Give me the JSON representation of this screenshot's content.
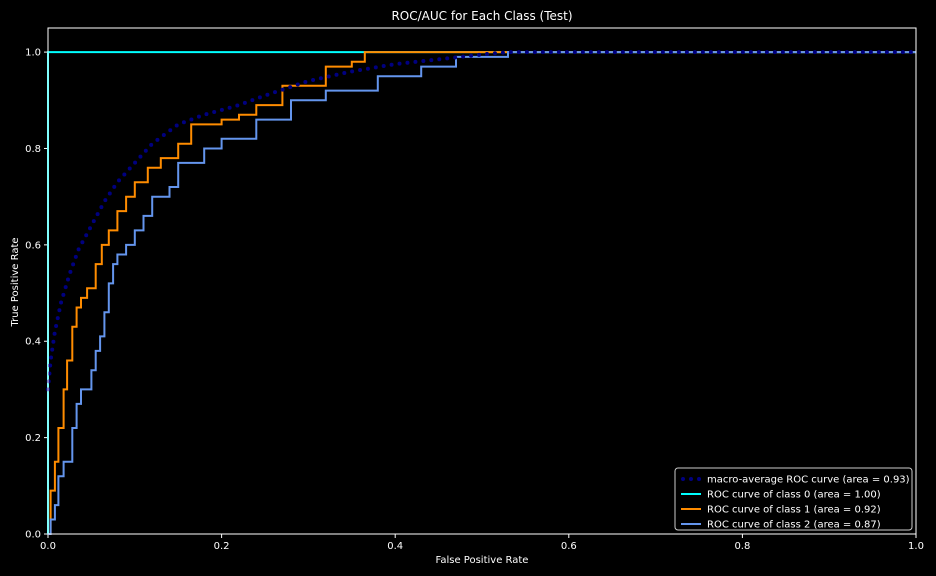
{
  "chart_data": {
    "type": "line",
    "title": "ROC/AUC for Each Class (Test)",
    "xlabel": "False Positive Rate",
    "ylabel": "True Positive Rate",
    "xlim": [
      0,
      1
    ],
    "ylim": [
      0,
      1.05
    ],
    "xticks": [
      "0.0",
      "0.2",
      "0.4",
      "0.6",
      "0.8",
      "1.0"
    ],
    "yticks": [
      "0.0",
      "0.2",
      "0.4",
      "0.6",
      "0.8",
      "1.0"
    ],
    "grid": false,
    "legend_position": "lower-right",
    "background": "#000000",
    "foreground": "#ffffff",
    "series": [
      {
        "name": "macro-average ROC curve (area = 0.93)",
        "color": "#000080",
        "style": "dotted",
        "x": [
          0.0,
          0.003,
          0.008,
          0.015,
          0.025,
          0.035,
          0.05,
          0.065,
          0.08,
          0.1,
          0.12,
          0.15,
          0.18,
          0.2,
          0.22,
          0.25,
          0.3,
          0.35,
          0.4,
          0.45,
          0.5,
          0.53,
          0.6,
          1.0
        ],
        "y": [
          0.3,
          0.36,
          0.42,
          0.48,
          0.54,
          0.59,
          0.64,
          0.69,
          0.73,
          0.77,
          0.81,
          0.85,
          0.87,
          0.88,
          0.89,
          0.91,
          0.94,
          0.96,
          0.975,
          0.985,
          0.995,
          1.0,
          1.0,
          1.0
        ]
      },
      {
        "name": "ROC curve of class 0 (area = 1.00)",
        "color": "#00ffff",
        "style": "solid",
        "x": [
          0.0,
          0.0,
          1.0
        ],
        "y": [
          0.0,
          1.0,
          1.0
        ]
      },
      {
        "name": "ROC curve of class 1 (area = 0.92)",
        "color": "#ff8c00",
        "style": "solid",
        "x": [
          0.0,
          0.003,
          0.003,
          0.008,
          0.008,
          0.012,
          0.012,
          0.018,
          0.018,
          0.022,
          0.022,
          0.028,
          0.028,
          0.033,
          0.033,
          0.038,
          0.038,
          0.045,
          0.045,
          0.055,
          0.055,
          0.062,
          0.062,
          0.07,
          0.07,
          0.08,
          0.08,
          0.09,
          0.09,
          0.1,
          0.1,
          0.115,
          0.115,
          0.13,
          0.13,
          0.15,
          0.15,
          0.165,
          0.165,
          0.2,
          0.2,
          0.22,
          0.22,
          0.24,
          0.24,
          0.27,
          0.27,
          0.32,
          0.32,
          0.35,
          0.35,
          0.365,
          0.365,
          1.0
        ],
        "y": [
          0.0,
          0.0,
          0.09,
          0.09,
          0.15,
          0.15,
          0.22,
          0.22,
          0.3,
          0.3,
          0.36,
          0.36,
          0.43,
          0.43,
          0.47,
          0.47,
          0.49,
          0.49,
          0.51,
          0.51,
          0.56,
          0.56,
          0.6,
          0.6,
          0.63,
          0.63,
          0.67,
          0.67,
          0.7,
          0.7,
          0.73,
          0.73,
          0.76,
          0.76,
          0.78,
          0.78,
          0.81,
          0.81,
          0.85,
          0.85,
          0.86,
          0.86,
          0.87,
          0.87,
          0.89,
          0.89,
          0.93,
          0.93,
          0.97,
          0.97,
          0.98,
          0.98,
          1.0,
          1.0
        ],
        "tight": true
      },
      {
        "name": "ROC curve of class 2 (area = 0.87)",
        "color": "#6495ed",
        "style": "solid",
        "x": [
          0.0,
          0.003,
          0.003,
          0.008,
          0.008,
          0.012,
          0.012,
          0.018,
          0.018,
          0.028,
          0.028,
          0.033,
          0.033,
          0.038,
          0.038,
          0.05,
          0.05,
          0.055,
          0.055,
          0.06,
          0.06,
          0.065,
          0.065,
          0.07,
          0.07,
          0.075,
          0.075,
          0.08,
          0.08,
          0.09,
          0.09,
          0.1,
          0.1,
          0.11,
          0.11,
          0.12,
          0.12,
          0.14,
          0.14,
          0.15,
          0.15,
          0.18,
          0.18,
          0.2,
          0.2,
          0.24,
          0.24,
          0.28,
          0.28,
          0.32,
          0.32,
          0.38,
          0.38,
          0.43,
          0.43,
          0.47,
          0.47,
          0.53,
          0.53,
          1.0
        ],
        "y": [
          0.0,
          0.0,
          0.03,
          0.03,
          0.06,
          0.06,
          0.12,
          0.12,
          0.15,
          0.15,
          0.22,
          0.22,
          0.27,
          0.27,
          0.3,
          0.3,
          0.34,
          0.34,
          0.38,
          0.38,
          0.41,
          0.41,
          0.46,
          0.46,
          0.52,
          0.52,
          0.56,
          0.56,
          0.58,
          0.58,
          0.6,
          0.6,
          0.63,
          0.63,
          0.66,
          0.66,
          0.7,
          0.7,
          0.72,
          0.72,
          0.77,
          0.77,
          0.8,
          0.8,
          0.82,
          0.82,
          0.86,
          0.86,
          0.9,
          0.9,
          0.92,
          0.92,
          0.95,
          0.95,
          0.97,
          0.97,
          0.99,
          0.99,
          1.0,
          1.0
        ],
        "tight": true
      }
    ]
  }
}
